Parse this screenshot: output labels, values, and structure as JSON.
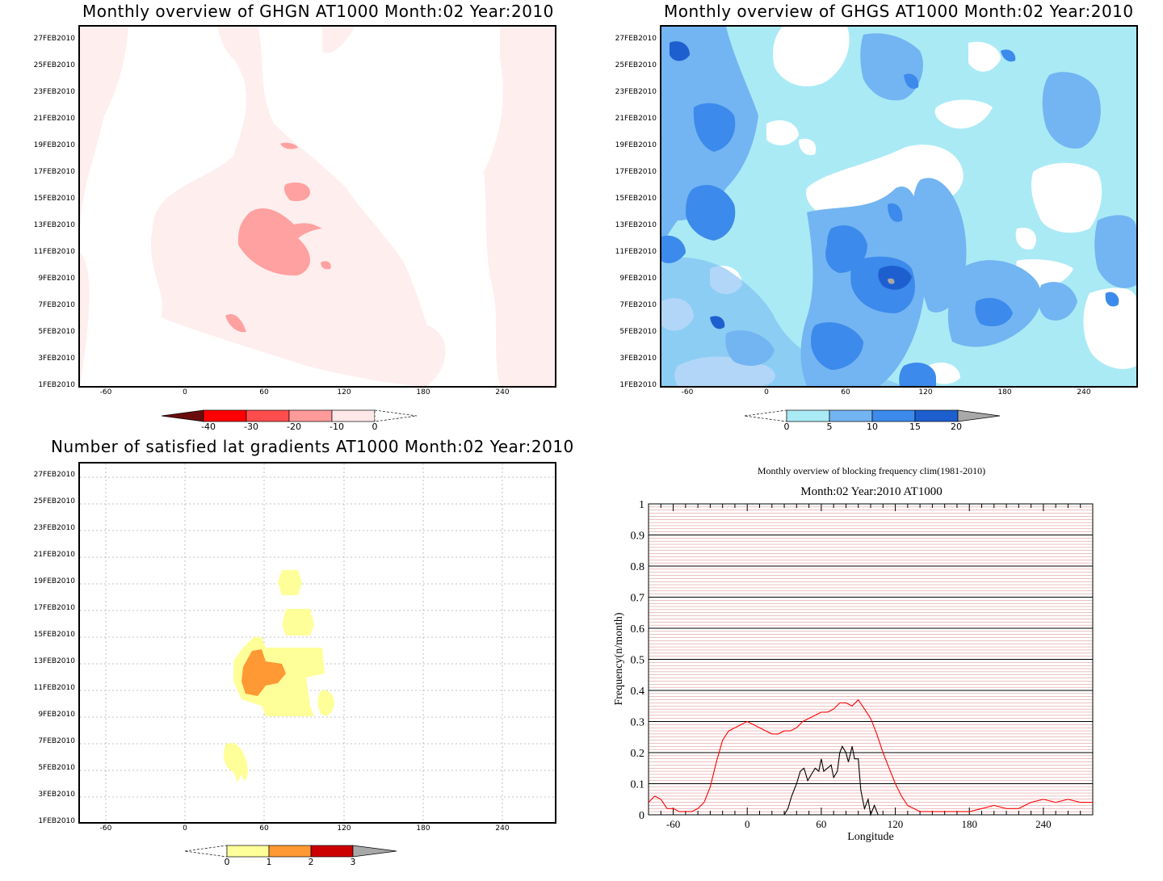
{
  "panels": {
    "ghgn": {
      "title": "Monthly overview of GHGN AT1000 Month:02 Year:2010",
      "colorbar": {
        "labels": [
          "-40",
          "-30",
          "-20",
          "-10",
          "0"
        ],
        "colors": [
          "#6b0c0c",
          "#ff0000",
          "#ff4d4d",
          "#ff9a9a",
          "#ffe8e8"
        ]
      }
    },
    "ghgs": {
      "title": "Monthly overview of GHGS AT1000 Month:02 Year:2010",
      "colorbar": {
        "labels": [
          "0",
          "5",
          "10",
          "15",
          "20"
        ],
        "colors": [
          "#aaeaf5",
          "#73b4f2",
          "#3c8aeb",
          "#1e5fd0",
          "#a8a8a8"
        ]
      }
    },
    "lat": {
      "title": "Number of satisfied lat gradients AT1000 Month:02 Year:2010",
      "colorbar": {
        "labels": [
          "0",
          "1",
          "2",
          "3"
        ],
        "colors": [
          "#ffff99",
          "#ff9933",
          "#cc0000",
          "#a8a8a8"
        ]
      }
    },
    "freq": {
      "title": "Monthly overview of blocking frequency clim(1981-2010)",
      "subtitle": "Month:02 Year:2010  AT1000"
    }
  },
  "date_axis": [
    "1FEB2010",
    "3FEB2010",
    "5FEB2010",
    "7FEB2010",
    "9FEB2010",
    "11FEB2010",
    "13FEB2010",
    "15FEB2010",
    "17FEB2010",
    "19FEB2010",
    "21FEB2010",
    "23FEB2010",
    "25FEB2010",
    "27FEB2010"
  ],
  "lon_axis": [
    "-60",
    "0",
    "60",
    "120",
    "180",
    "240"
  ],
  "chart_data": {
    "type": "line",
    "title": "Monthly overview of blocking frequency clim(1981-2010)",
    "subtitle": "Month:02 Year:2010  AT1000",
    "xlabel": "Longitude",
    "ylabel": "Frequency(n/month)",
    "xlim": [
      -80,
      280
    ],
    "ylim": [
      0,
      1
    ],
    "xticks": [
      "-60",
      "0",
      "60",
      "120",
      "180",
      "240"
    ],
    "yticks": [
      "0",
      "0.1",
      "0.2",
      "0.3",
      "0.4",
      "0.5",
      "0.6",
      "0.7",
      "0.8",
      "0.9",
      "1"
    ],
    "series": [
      {
        "color": "#ff0000",
        "x": [
          -80,
          -75,
          -70,
          -65,
          -60,
          -55,
          -50,
          -45,
          -40,
          -35,
          -30,
          -25,
          -20,
          -15,
          -10,
          -5,
          0,
          5,
          10,
          15,
          20,
          25,
          30,
          35,
          40,
          45,
          50,
          55,
          60,
          65,
          70,
          75,
          80,
          85,
          90,
          95,
          100,
          105,
          110,
          115,
          120,
          125,
          130,
          135,
          140,
          145,
          150,
          160,
          170,
          180,
          190,
          200,
          210,
          220,
          230,
          240,
          250,
          260,
          270,
          280
        ],
        "y": [
          0.04,
          0.06,
          0.05,
          0.02,
          0.02,
          0.01,
          0.01,
          0.01,
          0.02,
          0.04,
          0.09,
          0.17,
          0.24,
          0.27,
          0.28,
          0.29,
          0.3,
          0.29,
          0.28,
          0.27,
          0.26,
          0.26,
          0.27,
          0.27,
          0.28,
          0.3,
          0.31,
          0.32,
          0.33,
          0.33,
          0.34,
          0.36,
          0.36,
          0.35,
          0.37,
          0.34,
          0.31,
          0.26,
          0.2,
          0.15,
          0.1,
          0.06,
          0.03,
          0.02,
          0.01,
          0.01,
          0.01,
          0.01,
          0.01,
          0.01,
          0.02,
          0.03,
          0.02,
          0.02,
          0.04,
          0.05,
          0.04,
          0.05,
          0.04,
          0.04
        ]
      },
      {
        "color": "#000000",
        "x": [
          30,
          33,
          36,
          40,
          43,
          46,
          49,
          52,
          55,
          58,
          60,
          62,
          65,
          68,
          70,
          73,
          75,
          77,
          80,
          82,
          85,
          87,
          90,
          92,
          95,
          98,
          100,
          103,
          106,
          110
        ],
        "y": [
          0.0,
          0.02,
          0.06,
          0.1,
          0.14,
          0.15,
          0.11,
          0.13,
          0.15,
          0.14,
          0.18,
          0.14,
          0.15,
          0.16,
          0.12,
          0.14,
          0.2,
          0.22,
          0.2,
          0.17,
          0.22,
          0.18,
          0.18,
          0.08,
          0.02,
          0.05,
          0.0,
          0.03,
          0.0,
          0.0
        ]
      }
    ]
  }
}
